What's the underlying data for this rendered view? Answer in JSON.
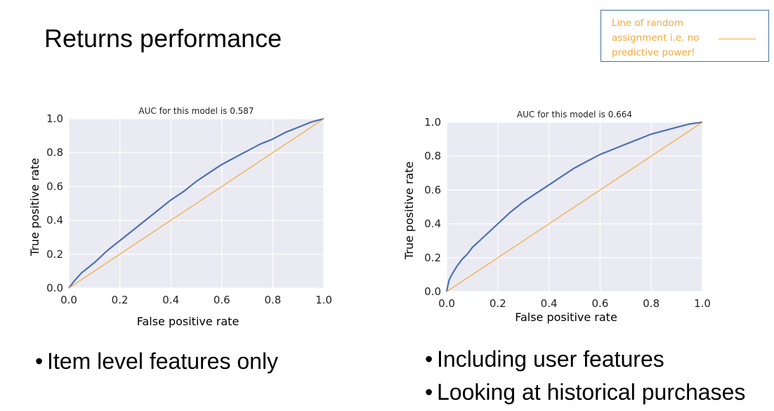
{
  "slide": {
    "title": "Returns performance",
    "legend": {
      "text": "Line of random assignment i.e. no predictive power!",
      "line_color": "#f4a93a"
    },
    "bullets_left": [
      "Item level features only"
    ],
    "bullets_right": [
      "Including user features",
      "Looking at historical purchases"
    ]
  },
  "colors": {
    "roc_curve": "#4c72b0",
    "random_line": "#f4a93a",
    "plot_background": "#eaeaf2",
    "grid": "#ffffff"
  },
  "chart_data": [
    {
      "type": "line",
      "title": "AUC for this model is 0.587",
      "xlabel": "False positive rate",
      "ylabel": "True positive rate",
      "xlim": [
        0,
        1
      ],
      "ylim": [
        0,
        1
      ],
      "xticks": [
        "0.0",
        "0.2",
        "0.4",
        "0.6",
        "0.8",
        "1.0"
      ],
      "yticks": [
        "0.0",
        "0.2",
        "0.4",
        "0.6",
        "0.8",
        "1.0"
      ],
      "grid": true,
      "series": [
        {
          "role": "roc",
          "x": [
            0,
            0.02,
            0.05,
            0.1,
            0.15,
            0.2,
            0.25,
            0.3,
            0.35,
            0.4,
            0.45,
            0.5,
            0.55,
            0.6,
            0.65,
            0.7,
            0.75,
            0.8,
            0.85,
            0.9,
            0.95,
            1.0
          ],
          "y": [
            0,
            0.04,
            0.09,
            0.15,
            0.22,
            0.28,
            0.34,
            0.4,
            0.46,
            0.52,
            0.57,
            0.63,
            0.68,
            0.73,
            0.77,
            0.81,
            0.85,
            0.88,
            0.92,
            0.95,
            0.98,
            1.0
          ]
        },
        {
          "role": "random",
          "x": [
            0,
            1
          ],
          "y": [
            0,
            1
          ]
        }
      ]
    },
    {
      "type": "line",
      "title": "AUC for this model is 0.664",
      "xlabel": "False positive rate",
      "ylabel": "True positive rate",
      "xlim": [
        0,
        1
      ],
      "ylim": [
        0,
        1
      ],
      "xticks": [
        "0.0",
        "0.2",
        "0.4",
        "0.6",
        "0.8",
        "1.0"
      ],
      "yticks": [
        "0.0",
        "0.2",
        "0.4",
        "0.6",
        "0.8",
        "1.0"
      ],
      "grid": true,
      "series": [
        {
          "role": "roc",
          "x": [
            0,
            0.005,
            0.01,
            0.02,
            0.04,
            0.06,
            0.08,
            0.1,
            0.15,
            0.2,
            0.25,
            0.3,
            0.35,
            0.4,
            0.45,
            0.5,
            0.55,
            0.6,
            0.65,
            0.7,
            0.75,
            0.8,
            0.85,
            0.9,
            0.95,
            1.0
          ],
          "y": [
            0,
            0.04,
            0.07,
            0.1,
            0.15,
            0.19,
            0.22,
            0.26,
            0.33,
            0.4,
            0.47,
            0.53,
            0.58,
            0.63,
            0.68,
            0.73,
            0.77,
            0.81,
            0.84,
            0.87,
            0.9,
            0.93,
            0.95,
            0.97,
            0.99,
            1.0
          ]
        },
        {
          "role": "random",
          "x": [
            0,
            1
          ],
          "y": [
            0,
            1
          ]
        }
      ]
    }
  ]
}
